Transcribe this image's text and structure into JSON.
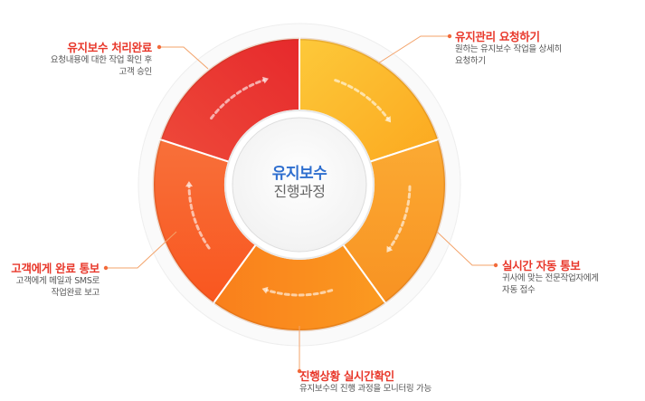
{
  "center": {
    "line1": "유지보수",
    "line2": "진행과정"
  },
  "steps": [
    {
      "title": "유지관리 요청하기",
      "desc": [
        "원하는 유지보수 작업을 상세히",
        "요청하기"
      ],
      "color": "#fcb82a"
    },
    {
      "title": "실시간 자동 통보",
      "desc": [
        "귀사에 맞는 전문작업자에게",
        "자동 접수"
      ],
      "color": "#fba02a"
    },
    {
      "title": "진행상황 실시간확인",
      "desc": [
        "유지보수의 진행 과정을 모니터링 가능"
      ],
      "color": "#fb8c1f"
    },
    {
      "title": "고객에게 완료 통보",
      "desc": [
        "고객에게 메일과 SMS로",
        "작업완료 보고"
      ],
      "color": "#f86a2a"
    },
    {
      "title": "유지보수 처리완료",
      "desc": [
        "요청내용에 대한 작업 확인 후",
        "고객 승인"
      ],
      "color": "#ea3833"
    }
  ],
  "colors": {
    "accent": "#e8372a",
    "center_title": "#2f6fcf",
    "leader_line": "#f3a36a"
  }
}
